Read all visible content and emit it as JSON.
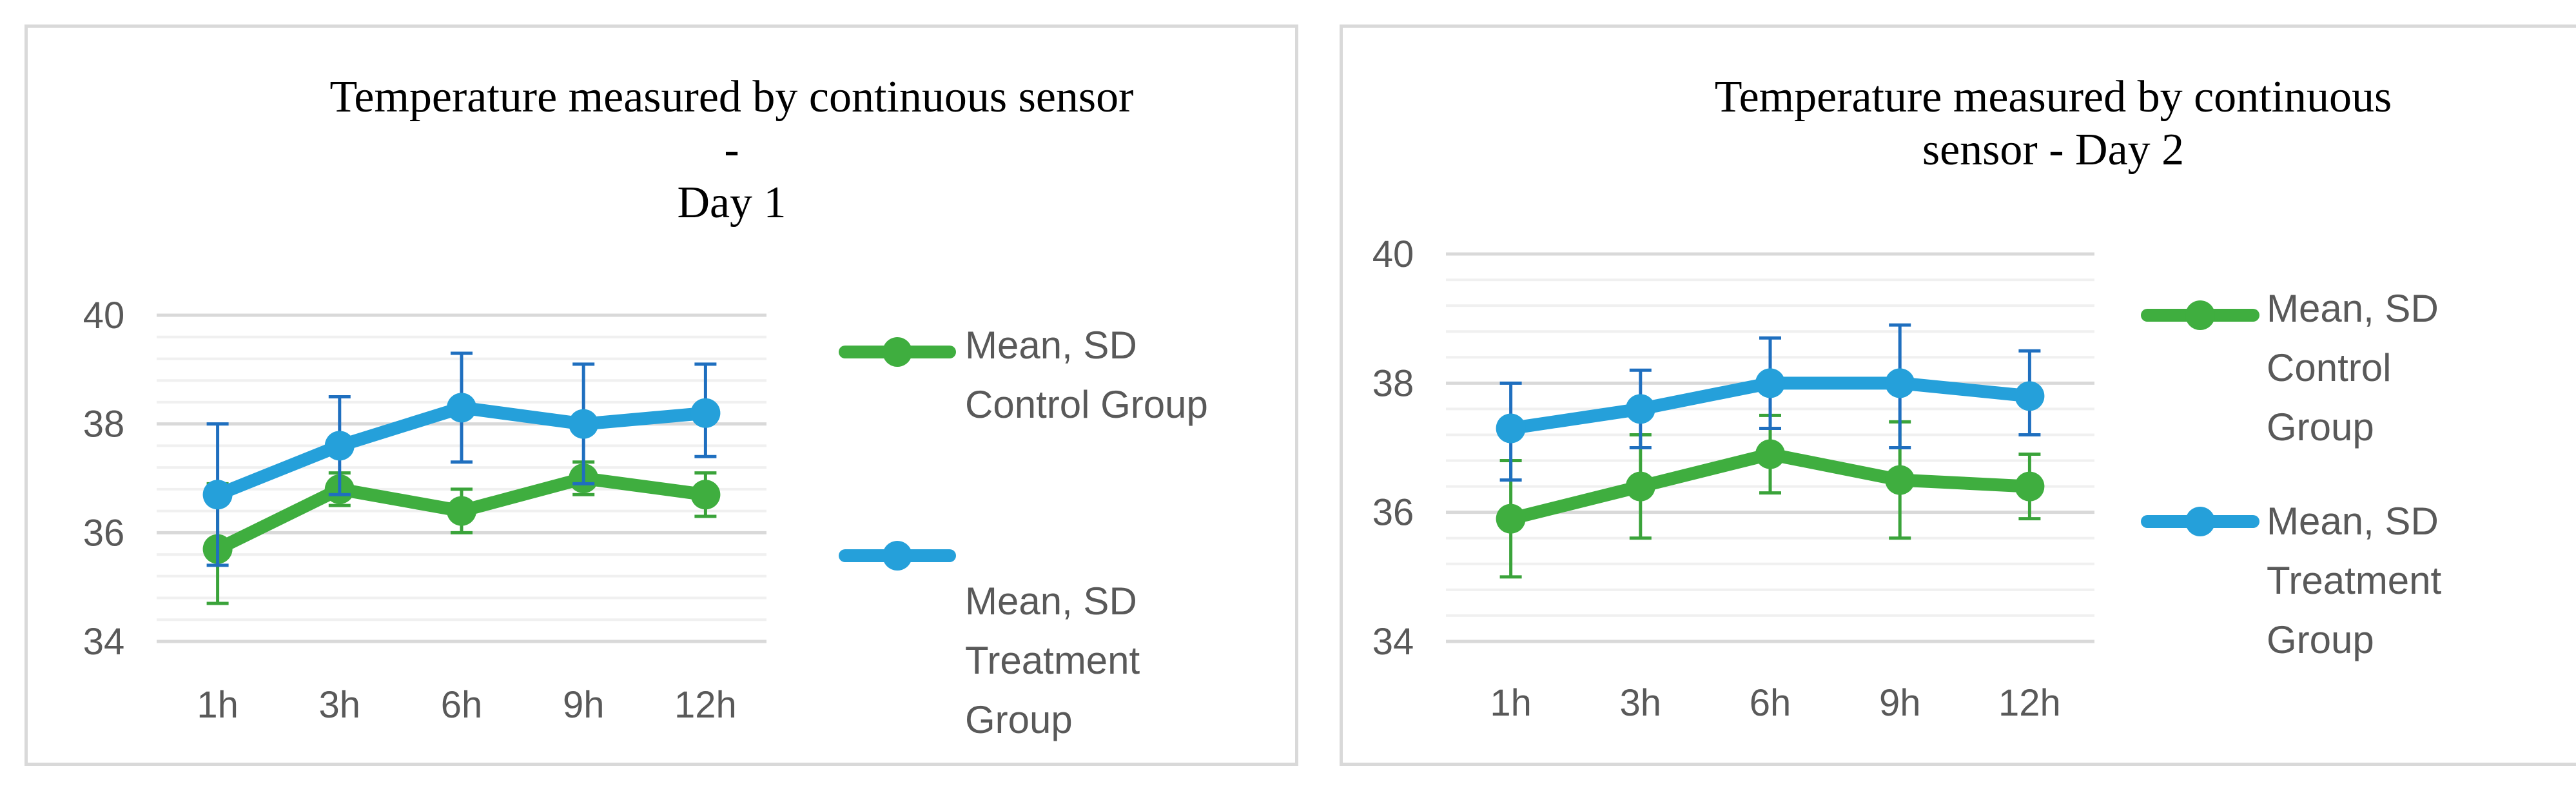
{
  "chart_data": [
    {
      "type": "line",
      "title_lines": [
        "Temperature measured by continuous sensor",
        "-",
        "Day 1"
      ],
      "xlabel": "",
      "ylabel": "",
      "categories": [
        "1h",
        "3h",
        "6h",
        "9h",
        "12h"
      ],
      "ylim": [
        34,
        40
      ],
      "yticks": [
        34,
        36,
        38,
        40
      ],
      "ytick_labels": [
        "34",
        "36",
        "38",
        "40"
      ],
      "minor_gridlines": true,
      "legend_position": "right",
      "series": [
        {
          "name": "Mean, SD Control Group",
          "legend_lines": [
            "Mean, SD",
            "Control Group"
          ],
          "color": "#3fae3f",
          "values": [
            35.7,
            36.8,
            36.4,
            37.0,
            36.7
          ],
          "error_upper": [
            36.9,
            37.1,
            36.8,
            37.3,
            37.1
          ],
          "error_lower": [
            34.7,
            36.5,
            36.0,
            36.7,
            36.3
          ]
        },
        {
          "name": "Mean, SD Treatment Group",
          "legend_lines": [
            "Mean, SD",
            "Treatment",
            "Group"
          ],
          "color": "#25a0da",
          "values": [
            36.7,
            37.6,
            38.3,
            38.0,
            38.2
          ],
          "error_upper": [
            38.0,
            38.5,
            39.3,
            39.1,
            39.1
          ],
          "error_lower": [
            35.4,
            36.7,
            37.3,
            36.9,
            37.4
          ]
        }
      ]
    },
    {
      "type": "line",
      "title_lines": [
        "Temperature measured by continuous",
        "sensor - Day 2"
      ],
      "xlabel": "",
      "ylabel": "",
      "categories": [
        "1h",
        "3h",
        "6h",
        "9h",
        "12h"
      ],
      "ylim": [
        34,
        40
      ],
      "yticks": [
        34,
        36,
        38,
        40
      ],
      "ytick_labels": [
        "34",
        "36",
        "38",
        "40"
      ],
      "minor_gridlines": true,
      "legend_position": "right",
      "series": [
        {
          "name": "Mean, SD Control Group",
          "legend_lines": [
            "Mean, SD",
            "Control",
            "Group"
          ],
          "color": "#3fae3f",
          "values": [
            35.9,
            36.4,
            36.9,
            36.5,
            36.4
          ],
          "error_upper": [
            36.8,
            37.2,
            37.5,
            37.4,
            36.9
          ],
          "error_lower": [
            35.0,
            35.6,
            36.3,
            35.6,
            35.9
          ]
        },
        {
          "name": "Mean, SD Treatment Group",
          "legend_lines": [
            "Mean, SD",
            "Treatment",
            "Group"
          ],
          "color": "#25a0da",
          "values": [
            37.3,
            37.6,
            38.0,
            38.0,
            37.8
          ],
          "error_upper": [
            38.0,
            38.2,
            38.7,
            38.9,
            38.5
          ],
          "error_lower": [
            36.5,
            37.0,
            37.3,
            37.0,
            37.2
          ]
        }
      ]
    }
  ]
}
